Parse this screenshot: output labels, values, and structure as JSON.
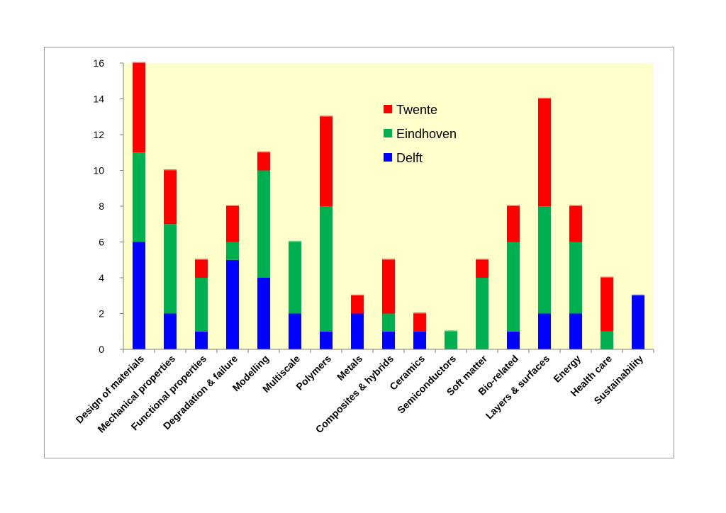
{
  "chart_data": {
    "type": "bar",
    "stacked": true,
    "title": "",
    "xlabel": "",
    "ylabel": "",
    "ylim": [
      0,
      16
    ],
    "yticks": [
      0,
      2,
      4,
      6,
      8,
      10,
      12,
      14,
      16
    ],
    "grid": false,
    "plot_background": "#ffffcc",
    "legend_placement": "top-center",
    "categories": [
      "Design of materials",
      "Mechanical properties",
      "Functional properties",
      "Degradation & failure",
      "Modelling",
      "Multiscale",
      "Polymers",
      "Metals",
      "Composites & hybrids",
      "Ceramics",
      "Semiconductors",
      "Soft matter",
      "Bio-related",
      "Layers & surfaces",
      "Energy",
      "Health care",
      "Sustainability"
    ],
    "series": [
      {
        "name": "Delft",
        "color": "#0000ff",
        "values": [
          6,
          2,
          1,
          5,
          4,
          2,
          1,
          2,
          1,
          1,
          0,
          0,
          1,
          2,
          2,
          0,
          3
        ]
      },
      {
        "name": "Eindhoven",
        "color": "#00b050",
        "values": [
          5,
          5,
          3,
          1,
          6,
          4,
          7,
          0,
          1,
          0,
          1,
          4,
          5,
          6,
          4,
          1,
          0
        ]
      },
      {
        "name": "Twente",
        "color": "#ff0000",
        "values": [
          5,
          3,
          1,
          2,
          1,
          0,
          5,
          1,
          3,
          1,
          0,
          1,
          2,
          6,
          2,
          3,
          0
        ]
      }
    ],
    "legend_order": [
      "Twente",
      "Eindhoven",
      "Delft"
    ]
  }
}
